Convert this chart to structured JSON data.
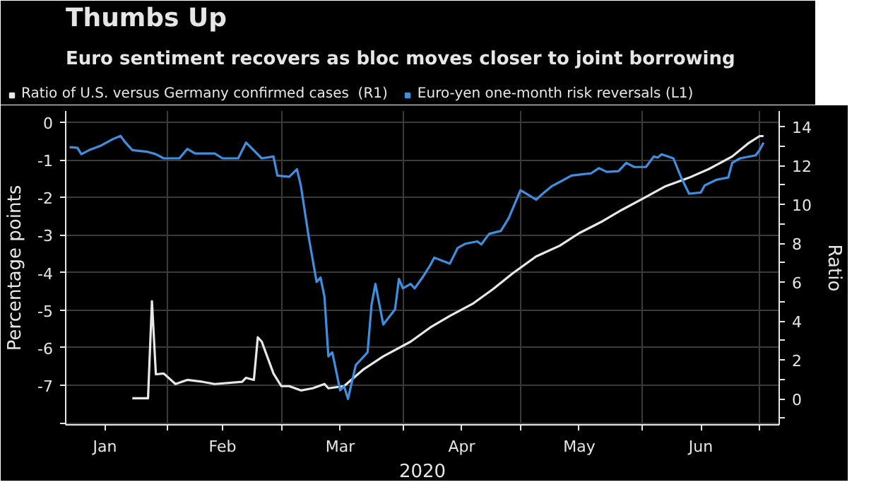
{
  "chart_data": {
    "type": "line",
    "title": "Thumbs Up",
    "subtitle": "Euro sentiment recovers as bloc moves closer to joint borrowing",
    "xlabel": "2020",
    "ylabel": "Percentage points",
    "y2label": "Ratio",
    "xlim": [
      "2020-01-06",
      "2020-07-06"
    ],
    "xticks": [
      {
        "value": "2020-02-01",
        "label": null
      },
      {
        "value": "2020-03-01",
        "label": null
      },
      {
        "value": "2020-04-01",
        "label": null
      },
      {
        "value": "2020-05-01",
        "label": null
      },
      {
        "value": "2020-06-01",
        "label": null
      },
      {
        "value": "2020-07-01",
        "label": null
      },
      {
        "value": "2020-01-16",
        "label": "Jan"
      },
      {
        "value": "2020-02-15",
        "label": "Feb"
      },
      {
        "value": "2020-03-16",
        "label": "Mar"
      },
      {
        "value": "2020-04-16",
        "label": "Apr"
      },
      {
        "value": "2020-05-16",
        "label": "May"
      },
      {
        "value": "2020-06-16",
        "label": "Jun"
      }
    ],
    "ylim": [
      -8.05,
      0.3
    ],
    "yticks": [
      0,
      -1,
      -2,
      -3,
      -4,
      -5,
      -6,
      -7,
      {
        "value": -8,
        "label": null
      }
    ],
    "y2lim": [
      -1.33,
      14.81
    ],
    "y2ticks": [
      0,
      2,
      4,
      6,
      8,
      10,
      12,
      14,
      {
        "value": -1,
        "label": null
      },
      {
        "value": 1,
        "label": null
      },
      {
        "value": 3,
        "label": null
      },
      {
        "value": 5,
        "label": null
      },
      {
        "value": 7,
        "label": null
      },
      {
        "value": 9,
        "label": null
      },
      {
        "value": 11,
        "label": null
      },
      {
        "value": 13,
        "label": null
      }
    ],
    "grid": true,
    "legend": "top left",
    "marker": "none",
    "line_style": "solid",
    "series": [
      {
        "name": "Ratio of U.S. versus Germany confirmed cases  (R1)",
        "color": "#e8e8e8",
        "axis": "y2",
        "x": [
          "2020-01-23",
          "2020-01-27",
          "2020-01-28",
          "2020-01-29",
          "2020-01-31",
          "2020-02-03",
          "2020-02-06",
          "2020-02-10",
          "2020-02-13",
          "2020-02-20",
          "2020-02-21",
          "2020-02-23",
          "2020-02-24",
          "2020-02-25",
          "2020-02-28",
          "2020-03-01",
          "2020-03-03",
          "2020-03-06",
          "2020-03-09",
          "2020-03-12",
          "2020-03-13",
          "2020-03-17",
          "2020-03-22",
          "2020-03-27",
          "2020-04-03",
          "2020-04-08",
          "2020-04-13",
          "2020-04-19",
          "2020-04-24",
          "2020-04-29",
          "2020-05-05",
          "2020-05-11",
          "2020-05-16",
          "2020-05-22",
          "2020-05-27",
          "2020-06-02",
          "2020-06-07",
          "2020-06-13",
          "2020-06-18",
          "2020-06-24",
          "2020-06-28",
          "2020-07-01",
          "2020-07-02"
        ],
        "values": [
          0.04,
          0.04,
          5.03,
          1.27,
          1.31,
          0.77,
          0.98,
          0.88,
          0.77,
          0.88,
          1.09,
          0.98,
          3.17,
          2.95,
          1.31,
          0.66,
          0.66,
          0.44,
          0.55,
          0.77,
          0.55,
          0.66,
          1.53,
          2.19,
          2.95,
          3.68,
          4.27,
          4.92,
          5.65,
          6.46,
          7.33,
          7.88,
          8.53,
          9.15,
          9.74,
          10.39,
          10.94,
          11.38,
          11.82,
          12.47,
          13.13,
          13.52,
          13.52
        ]
      },
      {
        "name": "Euro-yen one-month risk reversals (L1)",
        "color": "#3f8fe0",
        "x": [
          "2020-01-07",
          "2020-01-09",
          "2020-01-10",
          "2020-01-12",
          "2020-01-15",
          "2020-01-18",
          "2020-01-20",
          "2020-01-21",
          "2020-01-23",
          "2020-01-27",
          "2020-01-29",
          "2020-01-31",
          "2020-02-04",
          "2020-02-06",
          "2020-02-08",
          "2020-02-13",
          "2020-02-15",
          "2020-02-19",
          "2020-02-21",
          "2020-02-25",
          "2020-02-28",
          "2020-02-29",
          "2020-03-03",
          "2020-03-05",
          "2020-03-06",
          "2020-03-08",
          "2020-03-10",
          "2020-03-11",
          "2020-03-12",
          "2020-03-13",
          "2020-03-14",
          "2020-03-16",
          "2020-03-17",
          "2020-03-18",
          "2020-03-20",
          "2020-03-23",
          "2020-03-24",
          "2020-03-25",
          "2020-03-27",
          "2020-03-30",
          "2020-03-31",
          "2020-04-01",
          "2020-04-03",
          "2020-04-04",
          "2020-04-06",
          "2020-04-08",
          "2020-04-09",
          "2020-04-11",
          "2020-04-13",
          "2020-04-15",
          "2020-04-17",
          "2020-04-20",
          "2020-04-21",
          "2020-04-23",
          "2020-04-26",
          "2020-04-28",
          "2020-05-01",
          "2020-05-03",
          "2020-05-05",
          "2020-05-07",
          "2020-05-09",
          "2020-05-11",
          "2020-05-14",
          "2020-05-17",
          "2020-05-19",
          "2020-05-21",
          "2020-05-23",
          "2020-05-26",
          "2020-05-28",
          "2020-05-30",
          "2020-06-02",
          "2020-06-04",
          "2020-06-05",
          "2020-06-06",
          "2020-06-09",
          "2020-06-11",
          "2020-06-13",
          "2020-06-16",
          "2020-06-17",
          "2020-06-20",
          "2020-06-23",
          "2020-06-24",
          "2020-06-26",
          "2020-06-30",
          "2020-07-01",
          "2020-07-02"
        ],
        "values": [
          -0.66,
          -0.68,
          -0.85,
          -0.74,
          -0.62,
          -0.45,
          -0.36,
          -0.51,
          -0.74,
          -0.79,
          -0.85,
          -0.96,
          -0.96,
          -0.71,
          -0.83,
          -0.83,
          -0.96,
          -0.96,
          -0.54,
          -0.96,
          -0.91,
          -1.42,
          -1.45,
          -1.25,
          -1.7,
          -3.06,
          -4.25,
          -4.13,
          -4.64,
          -6.23,
          -6.12,
          -7.13,
          -7.02,
          -7.36,
          -6.46,
          -6.12,
          -4.87,
          -4.3,
          -5.38,
          -4.98,
          -4.17,
          -4.42,
          -4.3,
          -4.42,
          -4.13,
          -3.8,
          -3.6,
          -3.68,
          -3.76,
          -3.34,
          -3.23,
          -3.17,
          -3.25,
          -2.97,
          -2.89,
          -2.55,
          -1.81,
          -1.93,
          -2.06,
          -1.87,
          -1.7,
          -1.59,
          -1.42,
          -1.38,
          -1.36,
          -1.22,
          -1.32,
          -1.3,
          -1.08,
          -1.19,
          -1.19,
          -0.91,
          -0.94,
          -0.85,
          -0.96,
          -1.47,
          -1.9,
          -1.87,
          -1.68,
          -1.53,
          -1.47,
          -1.08,
          -0.96,
          -0.88,
          -0.74,
          -0.54
        ]
      }
    ]
  }
}
